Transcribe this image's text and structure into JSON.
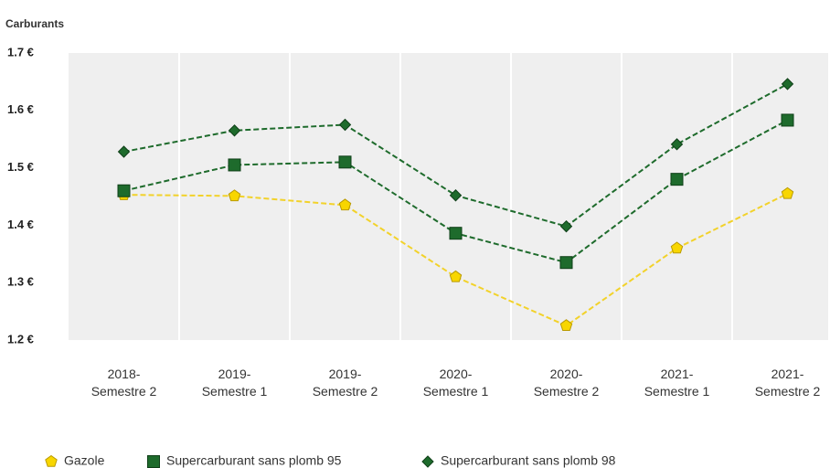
{
  "chart_data": {
    "type": "line",
    "title": "Carburants",
    "categories": [
      "2018-Semestre 2",
      "2019-Semestre 1",
      "2019-Semestre 2",
      "2020-Semestre 1",
      "2020-Semestre 2",
      "2021-Semestre 1",
      "2021-Semestre 2"
    ],
    "series": [
      {
        "name": "Gazole",
        "color": "#f2d22a",
        "marker": "pentagon",
        "values": [
          1.453,
          1.451,
          1.435,
          1.31,
          1.225,
          1.36,
          1.455
        ]
      },
      {
        "name": "Supercarburant sans plomb 95",
        "color": "#1e6b2c",
        "marker": "square",
        "values": [
          1.46,
          1.505,
          1.51,
          1.386,
          1.335,
          1.48,
          1.583
        ]
      },
      {
        "name": "Supercarburant sans plomb 98",
        "color": "#1e6b2c",
        "marker": "diamond",
        "values": [
          1.528,
          1.565,
          1.575,
          1.452,
          1.398,
          1.541,
          1.646
        ]
      }
    ],
    "ylim": [
      1.2,
      1.7
    ],
    "yticks": [
      {
        "value": 1.2,
        "label": "1.2 €"
      },
      {
        "value": 1.3,
        "label": "1.3 €"
      },
      {
        "value": 1.4,
        "label": "1.4 €"
      },
      {
        "value": 1.5,
        "label": "1.5 €"
      },
      {
        "value": 1.6,
        "label": "1.6 €"
      },
      {
        "value": 1.7,
        "label": "1.7 €"
      }
    ],
    "grid": true
  }
}
